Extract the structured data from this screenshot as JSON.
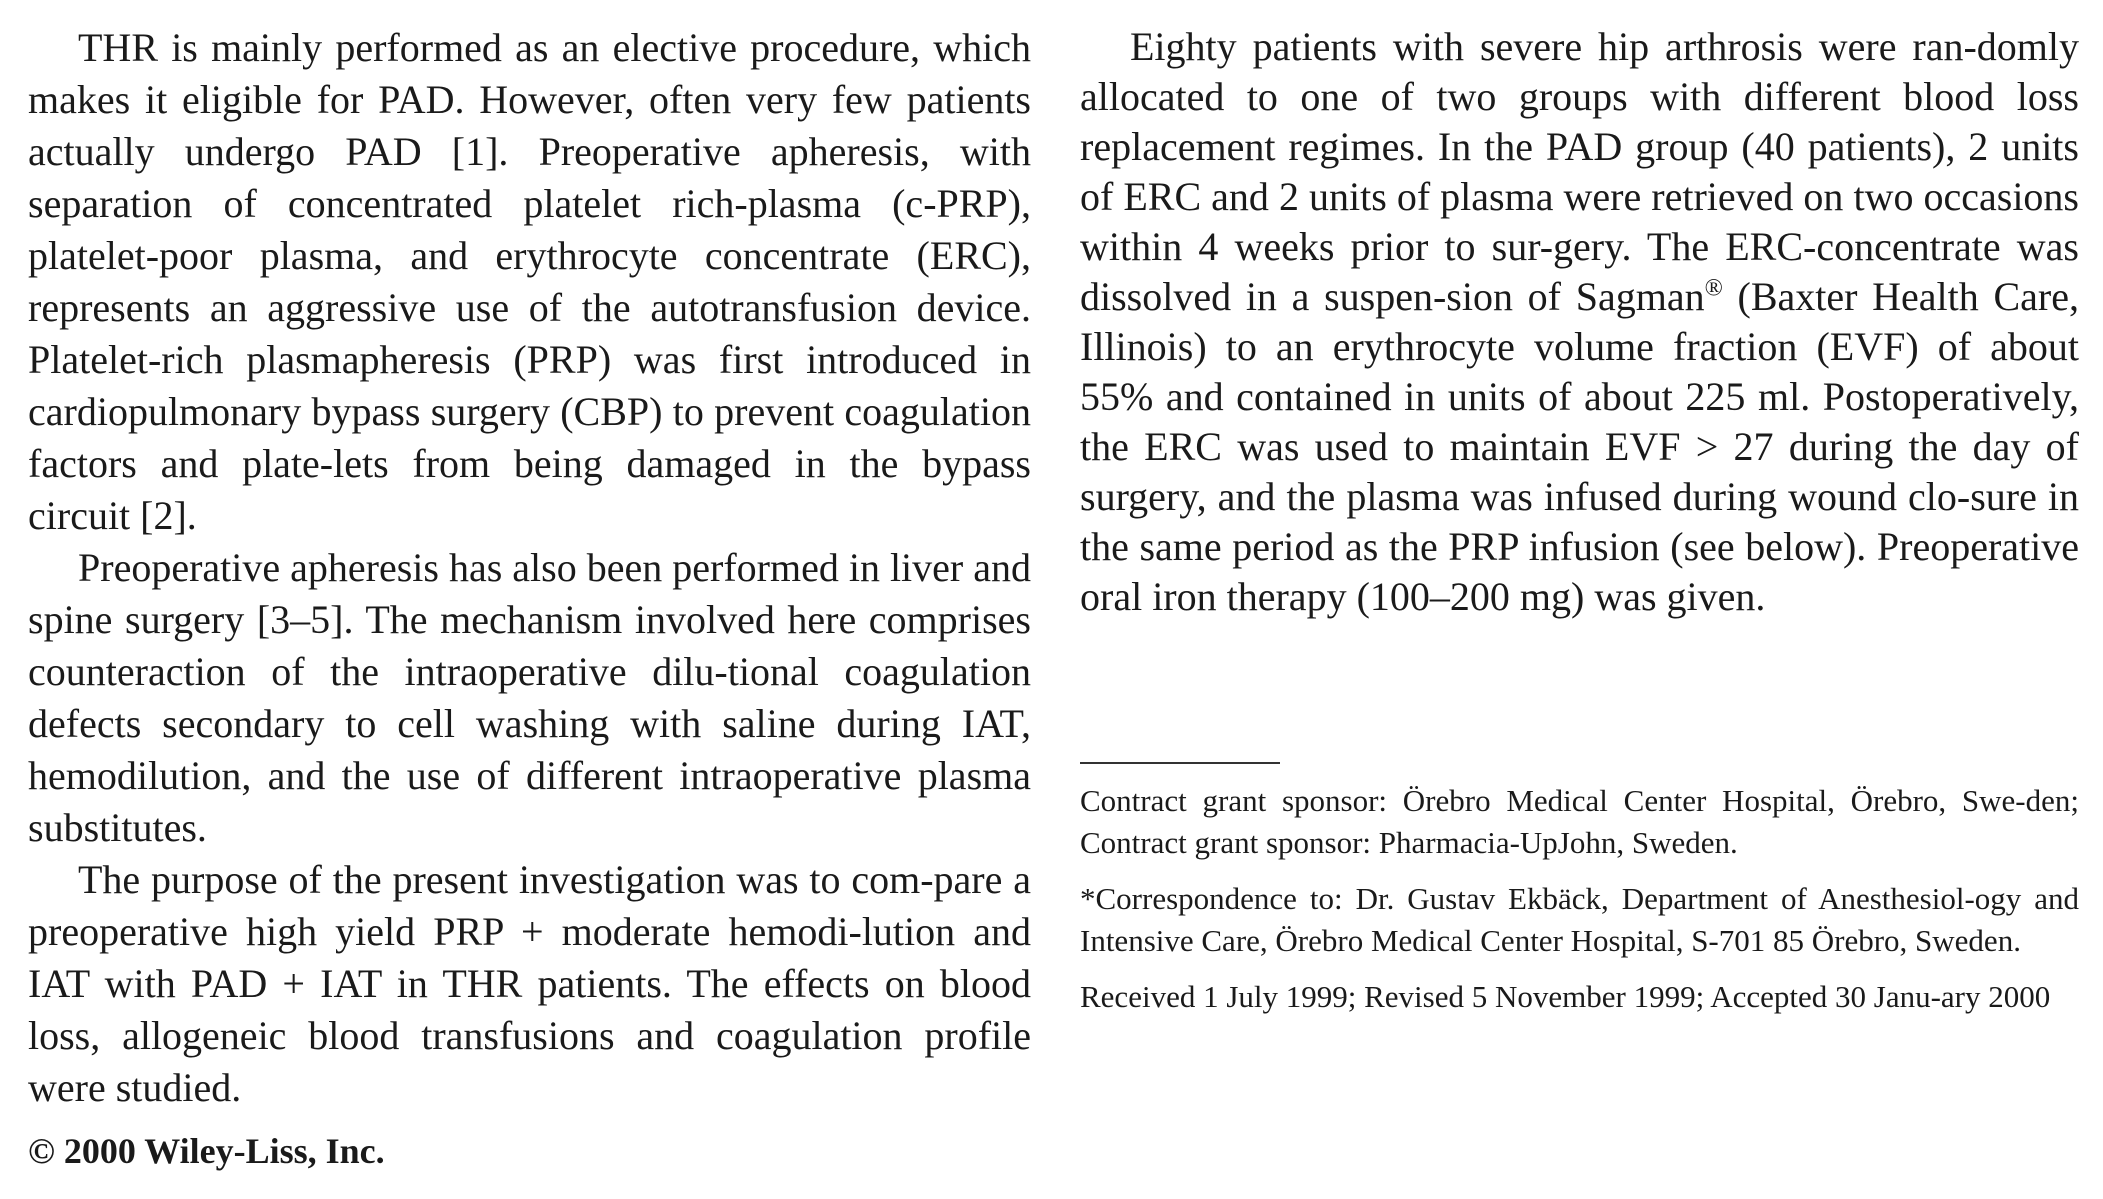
{
  "left_column": {
    "paragraphs": [
      "THR is mainly performed as an elective procedure, which makes it eligible for PAD. However, often very few patients actually undergo PAD [1]. Preoperative apheresis, with separation of concentrated platelet rich-plasma (c-PRP), platelet-poor plasma, and erythrocyte concentrate (ERC), represents an aggressive use of the autotransfusion device. Platelet-rich plasmapheresis (PRP) was first introduced in cardiopulmonary bypass surgery (CBP) to prevent coagulation factors and plate-lets from being damaged in the bypass circuit [2].",
      "Preoperative apheresis has also been performed in liver and spine surgery [3–5]. The mechanism involved here comprises counteraction of the intraoperative dilu-tional coagulation defects secondary to cell washing with saline during IAT, hemodilution, and the use of different intraoperative plasma substitutes.",
      "The purpose of the present investigation was to com-pare a preoperative high yield PRP + moderate hemodi-lution and IAT with PAD + IAT in THR patients. The effects on blood loss, allogeneic blood transfusions and coagulation profile were studied."
    ]
  },
  "copyright": "© 2000 Wiley-Liss, Inc.",
  "right_column": {
    "paragraph_before_sup": "Eighty patients with severe hip arthrosis were ran-domly allocated to one of two groups with different blood loss replacement regimes. In the PAD group (40 patients), 2 units of ERC and 2 units of plasma were retrieved on two occasions within 4 weeks prior to sur-gery. The ERC-concentrate was dissolved in a suspen-sion of Sagman",
    "registered_mark": "®",
    "paragraph_after_sup": " (Baxter Health Care, Illinois) to an erythrocyte volume fraction (EVF) of about 55% and contained in units of about 225 ml. Postoperatively, the ERC was used to maintain EVF > 27 during the day of surgery, and the plasma was infused during wound clo-sure in the same period as the PRP infusion (see below). Preoperative oral iron therapy (100–200 mg) was given."
  },
  "footnotes": [
    "Contract grant sponsor: Örebro Medical Center Hospital, Örebro, Swe-den; Contract grant sponsor: Pharmacia-UpJohn, Sweden.",
    "*Correspondence to: Dr. Gustav Ekbäck, Department of Anesthesiol-ogy and Intensive Care, Örebro Medical Center Hospital, S-701 85 Örebro, Sweden.",
    "Received 1 July 1999; Revised 5 November 1999; Accepted 30 Janu-ary 2000"
  ]
}
